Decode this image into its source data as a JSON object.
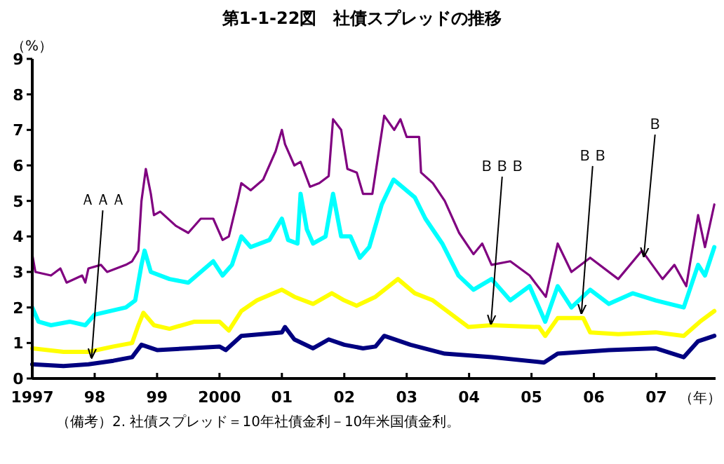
{
  "chart_data": {
    "type": "line",
    "title": "第1-1-22図　社債スプレッドの推移",
    "xlabel": "（年）",
    "ylabel": "（%）",
    "xlim": [
      1997,
      2007.95
    ],
    "ylim": [
      0,
      9
    ],
    "xticks": [
      {
        "value": 1997,
        "label": "1997"
      },
      {
        "value": 1998,
        "label": "98"
      },
      {
        "value": 1999,
        "label": "99"
      },
      {
        "value": 2000,
        "label": "2000"
      },
      {
        "value": 2001,
        "label": "01"
      },
      {
        "value": 2002,
        "label": "02"
      },
      {
        "value": 2003,
        "label": "03"
      },
      {
        "value": 2004,
        "label": "04"
      },
      {
        "value": 2005,
        "label": "05"
      },
      {
        "value": 2006,
        "label": "06"
      },
      {
        "value": 2007,
        "label": "07"
      }
    ],
    "yticks": [
      0,
      1,
      2,
      3,
      4,
      5,
      6,
      7,
      8,
      9
    ],
    "annotations": [
      {
        "text": "ＡＡＡ",
        "x": 1997.95,
        "y": 0.55
      },
      {
        "text": "ＢＢＢ",
        "x": 2004.35,
        "y": 1.5
      },
      {
        "text": "ＢＢ",
        "x": 2005.8,
        "y": 1.8
      },
      {
        "text": "Ｂ",
        "x": 2006.8,
        "y": 3.4
      },
      "（備考）2. 社債スプレッド＝10年社債金利－10年米国債金利。"
    ],
    "series": [
      {
        "color": "#800080",
        "x": [
          1997.0,
          1997.05,
          1997.3,
          1997.45,
          1997.55,
          1997.8,
          1997.85,
          1997.9,
          1998.1,
          1998.2,
          1998.5,
          1998.6,
          1998.7,
          1998.75,
          1998.82,
          1998.9,
          1998.95,
          1999.05,
          1999.3,
          1999.5,
          1999.7,
          1999.9,
          2000.05,
          2000.15,
          2000.3,
          2000.35,
          2000.5,
          2000.7,
          2000.9,
          2001.0,
          2001.05,
          2001.2,
          2001.3,
          2001.45,
          2001.6,
          2001.75,
          2001.82,
          2001.95,
          2002.05,
          2002.2,
          2002.3,
          2002.45,
          2002.64,
          2002.8,
          2002.9,
          2003.0,
          2003.2,
          2003.23,
          2003.42,
          2003.61,
          2003.84,
          2004.07,
          2004.21,
          2004.36,
          2004.66,
          2004.97,
          2005.23,
          2005.42,
          2005.64,
          2005.94,
          2006.39,
          2006.77,
          2007.1,
          2007.29,
          2007.48,
          2007.67,
          2007.78,
          2007.93
        ],
        "values": [
          3.5,
          3.0,
          2.9,
          3.1,
          2.7,
          2.9,
          2.7,
          3.1,
          3.2,
          3.0,
          3.2,
          3.3,
          3.6,
          5.0,
          5.9,
          5.2,
          4.6,
          4.7,
          4.3,
          4.1,
          4.5,
          4.5,
          3.9,
          4.0,
          5.1,
          5.5,
          5.3,
          5.6,
          6.4,
          7.0,
          6.6,
          6.0,
          6.1,
          5.4,
          5.5,
          5.7,
          7.3,
          7.0,
          5.9,
          5.8,
          5.2,
          5.2,
          7.4,
          7.0,
          7.3,
          6.8,
          6.8,
          5.8,
          5.5,
          5.0,
          4.1,
          3.5,
          3.8,
          3.2,
          3.3,
          2.9,
          2.3,
          3.8,
          3.0,
          3.4,
          2.8,
          3.6,
          2.8,
          3.2,
          2.6,
          4.6,
          3.7,
          4.9
        ]
      },
      {
        "color": "#00ffff",
        "x": [
          1997.0,
          1997.1,
          1997.3,
          1997.6,
          1997.85,
          1998.0,
          1998.5,
          1998.65,
          1998.75,
          1998.8,
          1998.9,
          1999.2,
          1999.5,
          1999.7,
          1999.9,
          2000.05,
          2000.2,
          2000.35,
          2000.5,
          2000.8,
          2001.0,
          2001.1,
          2001.25,
          2001.3,
          2001.4,
          2001.5,
          2001.7,
          2001.82,
          2001.95,
          2002.1,
          2002.25,
          2002.4,
          2002.6,
          2002.79,
          2003.13,
          2003.3,
          2003.57,
          2003.83,
          2004.07,
          2004.36,
          2004.66,
          2004.97,
          2005.22,
          2005.42,
          2005.64,
          2005.94,
          2006.24,
          2006.62,
          2006.99,
          2007.44,
          2007.67,
          2007.78,
          2007.93
        ],
        "values": [
          2.0,
          1.6,
          1.5,
          1.6,
          1.5,
          1.8,
          2.0,
          2.2,
          3.2,
          3.6,
          3.0,
          2.8,
          2.7,
          3.0,
          3.3,
          2.9,
          3.2,
          4.0,
          3.7,
          3.9,
          4.5,
          3.9,
          3.8,
          5.2,
          4.2,
          3.8,
          4.0,
          5.2,
          4.0,
          4.0,
          3.4,
          3.7,
          4.9,
          5.6,
          5.1,
          4.5,
          3.8,
          2.9,
          2.5,
          2.8,
          2.2,
          2.6,
          1.6,
          2.6,
          2.0,
          2.5,
          2.1,
          2.4,
          2.2,
          2.0,
          3.2,
          2.9,
          3.7
        ]
      },
      {
        "color": "#ffff00",
        "x": [
          1997.0,
          1997.5,
          1997.9,
          1998.3,
          1998.6,
          1998.7,
          1998.78,
          1998.95,
          1999.2,
          1999.6,
          2000.0,
          2000.15,
          2000.35,
          2000.6,
          2001.0,
          2001.2,
          2001.5,
          2001.8,
          2002.0,
          2002.2,
          2002.5,
          2002.86,
          2003.13,
          2003.42,
          2003.99,
          2004.36,
          2005.12,
          2005.22,
          2005.42,
          2005.83,
          2005.94,
          2006.39,
          2006.99,
          2007.44,
          2007.7,
          2007.93
        ],
        "values": [
          0.85,
          0.75,
          0.75,
          0.9,
          1.0,
          1.5,
          1.85,
          1.5,
          1.4,
          1.6,
          1.6,
          1.35,
          1.9,
          2.2,
          2.5,
          2.3,
          2.1,
          2.4,
          2.2,
          2.05,
          2.3,
          2.8,
          2.4,
          2.2,
          1.45,
          1.5,
          1.45,
          1.2,
          1.7,
          1.7,
          1.3,
          1.25,
          1.3,
          1.2,
          1.6,
          1.9
        ]
      },
      {
        "color": "#000080",
        "x": [
          1997.0,
          1997.5,
          1997.9,
          1998.3,
          1998.6,
          1998.75,
          1999.0,
          1999.5,
          2000.0,
          2000.1,
          2000.35,
          2001.0,
          2001.05,
          2001.2,
          2001.5,
          2001.75,
          2002.0,
          2002.3,
          2002.5,
          2002.64,
          2003.06,
          2003.61,
          2004.36,
          2005.2,
          2005.42,
          2006.24,
          2006.99,
          2007.44,
          2007.67,
          2007.93
        ],
        "values": [
          0.4,
          0.35,
          0.4,
          0.5,
          0.6,
          0.95,
          0.8,
          0.85,
          0.9,
          0.8,
          1.2,
          1.3,
          1.45,
          1.1,
          0.85,
          1.1,
          0.95,
          0.85,
          0.9,
          1.2,
          0.95,
          0.7,
          0.6,
          0.45,
          0.7,
          0.8,
          0.85,
          0.6,
          1.05,
          1.2
        ]
      }
    ]
  }
}
